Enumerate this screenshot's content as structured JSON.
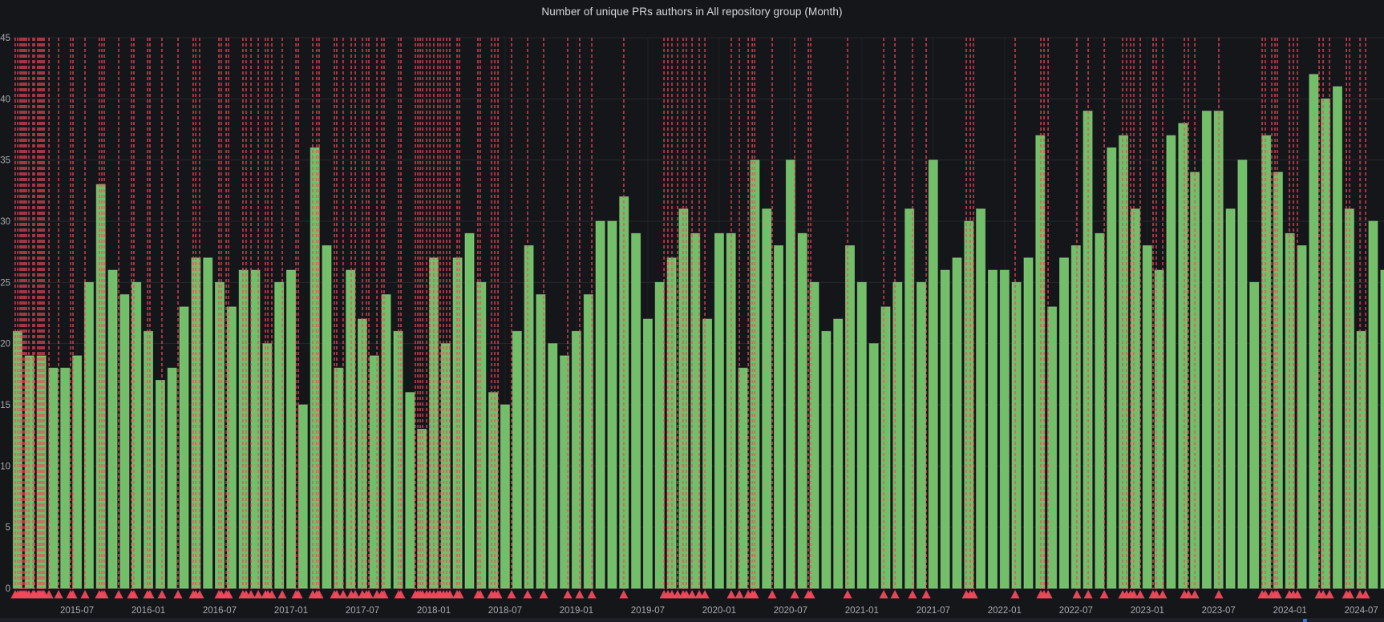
{
  "panel": {
    "title": "Number of unique PRs authors in All repository group (Month)"
  },
  "chart_data": {
    "type": "bar",
    "title": "Number of unique PRs authors in All repository group (Month)",
    "xlabel": "",
    "ylabel": "",
    "ylim": [
      0,
      45
    ],
    "grid": true,
    "legend_position": "none",
    "y_ticks": [
      0,
      5,
      10,
      15,
      20,
      25,
      30,
      35,
      40,
      45
    ],
    "x_tick_labels": [
      "2015-07",
      "2016-01",
      "2016-07",
      "2017-01",
      "2017-07",
      "2018-01",
      "2018-07",
      "2019-01",
      "2019-07",
      "2020-01",
      "2020-07",
      "2021-01",
      "2021-07",
      "2022-01",
      "2022-07",
      "2023-01",
      "2023-07",
      "2024-01",
      "2024-07"
    ],
    "categories": [
      "2015-02",
      "2015-03",
      "2015-04",
      "2015-05",
      "2015-06",
      "2015-07",
      "2015-08",
      "2015-09",
      "2015-10",
      "2015-11",
      "2015-12",
      "2016-01",
      "2016-02",
      "2016-03",
      "2016-04",
      "2016-05",
      "2016-06",
      "2016-07",
      "2016-08",
      "2016-09",
      "2016-10",
      "2016-11",
      "2016-12",
      "2017-01",
      "2017-02",
      "2017-03",
      "2017-04",
      "2017-05",
      "2017-06",
      "2017-07",
      "2017-08",
      "2017-09",
      "2017-10",
      "2017-11",
      "2017-12",
      "2018-01",
      "2018-02",
      "2018-03",
      "2018-04",
      "2018-05",
      "2018-06",
      "2018-07",
      "2018-08",
      "2018-09",
      "2018-10",
      "2018-11",
      "2018-12",
      "2019-01",
      "2019-02",
      "2019-03",
      "2019-04",
      "2019-05",
      "2019-06",
      "2019-07",
      "2019-08",
      "2019-09",
      "2019-10",
      "2019-11",
      "2019-12",
      "2020-01",
      "2020-02",
      "2020-03",
      "2020-04",
      "2020-05",
      "2020-06",
      "2020-07",
      "2020-08",
      "2020-09",
      "2020-10",
      "2020-11",
      "2020-12",
      "2021-01",
      "2021-02",
      "2021-03",
      "2021-04",
      "2021-05",
      "2021-06",
      "2021-07",
      "2021-08",
      "2021-09",
      "2021-10",
      "2021-11",
      "2021-12",
      "2022-01",
      "2022-02",
      "2022-03",
      "2022-04",
      "2022-05",
      "2022-06",
      "2022-07",
      "2022-08",
      "2022-09",
      "2022-10",
      "2022-11",
      "2022-12",
      "2023-01",
      "2023-02",
      "2023-03",
      "2023-04",
      "2023-05",
      "2023-06",
      "2023-07",
      "2023-08",
      "2023-09",
      "2023-10",
      "2023-11",
      "2023-12",
      "2024-01",
      "2024-02",
      "2024-03",
      "2024-04",
      "2024-05",
      "2024-06",
      "2024-07",
      "2024-08",
      "2024-09"
    ],
    "values": [
      21,
      19,
      19,
      18,
      18,
      19,
      25,
      33,
      26,
      24,
      25,
      21,
      17,
      18,
      23,
      27,
      27,
      25,
      23,
      26,
      26,
      20,
      25,
      26,
      15,
      36,
      28,
      18,
      26,
      22,
      19,
      24,
      21,
      16,
      13,
      27,
      20,
      27,
      29,
      25,
      16,
      15,
      21,
      28,
      24,
      20,
      19,
      21,
      24,
      30,
      30,
      32,
      29,
      22,
      25,
      27,
      31,
      29,
      22,
      29,
      29,
      18,
      35,
      31,
      28,
      35,
      29,
      25,
      21,
      22,
      28,
      25,
      20,
      23,
      25,
      31,
      25,
      35,
      26,
      27,
      30,
      31,
      26,
      26,
      25,
      27,
      37,
      23,
      27,
      28,
      39,
      29,
      36,
      37,
      31,
      28,
      26,
      37,
      38,
      34,
      39,
      39,
      31,
      35,
      25,
      37,
      34,
      29,
      28,
      42,
      40,
      41,
      31,
      21,
      30,
      26
    ],
    "annotations": {
      "style": "dashed-vertical-line-with-triangle-marker",
      "positions_months": [
        -0.2,
        0.01,
        0.21,
        0.34,
        0.48,
        0.61,
        0.75,
        0.95,
        1.29,
        1.42,
        1.69,
        1.83,
        1.96,
        2.1,
        2.23,
        2.64,
        3.45,
        4.46,
        4.66,
        5.67,
        6.88,
        7.09,
        7.29,
        8.5,
        9.58,
        9.78,
        10.93,
        11.13,
        12.14,
        13.49,
        14.77,
        14.98,
        15.31,
        16.93,
        17.13,
        17.54,
        17.74,
        18.95,
        19.22,
        19.63,
        20.24,
        20.84,
        21.05,
        21.38,
        22.26,
        23.41,
        23.61,
        24.82,
        25.16,
        25.36,
        26.64,
        26.84,
        27.38,
        28.06,
        28.4,
        29.0,
        29.34,
        29.54,
        30.22,
        30.62,
        30.82,
        32.04,
        32.24,
        33.45,
        33.66,
        33.86,
        34.06,
        34.4,
        34.67,
        35.0,
        35.34,
        35.54,
        35.81,
        36.08,
        36.35,
        36.96,
        37.16,
        38.71,
        38.91,
        39.86,
        40.13,
        40.4,
        41.54,
        42.89,
        44.24,
        46.26,
        47.27,
        48.29,
        50.98,
        54.36,
        54.69,
        55.03,
        55.5,
        55.97,
        56.24,
        56.72,
        57.32,
        57.8,
        60.02,
        60.7,
        61.44,
        61.78,
        61.98,
        63.46,
        65.35,
        66.5,
        66.7,
        69.8,
        72.84,
        73.78,
        75.26,
        76.41,
        79.78,
        80.12,
        80.39,
        83.89,
        86.05,
        86.32,
        86.66,
        89.08,
        90.03,
        91.38,
        92.93,
        93.26,
        93.6,
        93.87,
        94.41,
        95.49,
        95.76,
        96.3,
        98.12,
        98.46,
        99.0,
        101.02,
        104.66,
        104.93,
        105.47,
        105.74,
        105.94,
        106.95,
        107.29,
        107.63,
        109.45,
        109.79,
        110.33,
        111.75,
        112.02,
        112.89,
        113.36
      ]
    },
    "colors": {
      "background": "#141619",
      "bar_fill": "#73BF69",
      "bar_border": "#96D98D",
      "annotation": "#F2495C",
      "grid": "rgba(204,204,220,0.10)",
      "grid_vertical": "rgba(204,204,220,0.06)",
      "axis_text": "#A7AAB2",
      "title_text": "#D8D9DA",
      "bottom_edge": "#1D2027",
      "peek_blue": "#3A74D8"
    }
  }
}
